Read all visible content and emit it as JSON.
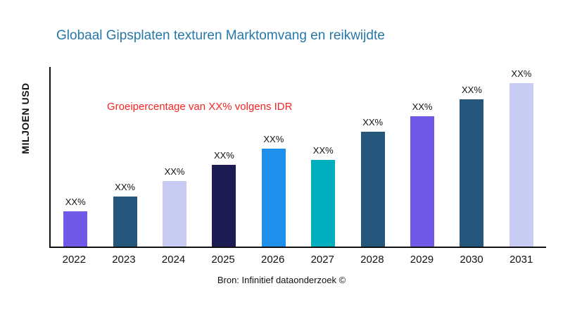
{
  "page": {
    "title": "Globaal Gipsplaten texturen Marktomvang en reikwijdte",
    "annotation": "Groeipercentage van XX% volgens IDR",
    "ylabel": "MILJOEN USD",
    "source": "Bron: Infinitief dataonderzoek ©"
  },
  "chart_data": {
    "type": "bar",
    "title": "Globaal Gipsplaten texturen Marktomvang en reikwijdte",
    "xlabel": "",
    "ylabel": "MILJOEN USD",
    "categories": [
      "2022",
      "2023",
      "2024",
      "2025",
      "2026",
      "2027",
      "2028",
      "2029",
      "2030",
      "2031"
    ],
    "values": [
      50,
      71,
      93,
      116,
      139,
      123,
      163,
      185,
      209,
      232
    ],
    "value_labels": [
      "XX%",
      "XX%",
      "XX%",
      "XX%",
      "XX%",
      "XX%",
      "XX%",
      "XX%",
      "XX%",
      "XX%"
    ],
    "values_note": "Bar heights estimated in relative units; all data labels shown as XX% placeholders in source image",
    "ylim": [
      0,
      255
    ],
    "grid": false,
    "legend": "none",
    "annotation": "Groeipercentage van XX% volgens IDR",
    "source": "Bron: Infinitief dataonderzoek ©",
    "bar_colors": [
      "#7159E8",
      "#25567C",
      "#C9CCF2",
      "#1C1C52",
      "#1E8FEA",
      "#00AFBE",
      "#25567C",
      "#7159E8",
      "#25567C",
      "#C9CCF2"
    ],
    "title_color": "#2778A9",
    "annotation_color": "#F42525",
    "axis_color": "#111111"
  }
}
